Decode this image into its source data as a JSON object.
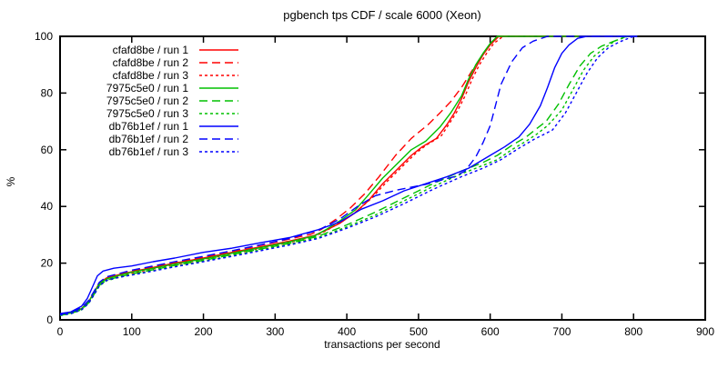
{
  "chart_data": {
    "type": "line",
    "title": "pgbench tps CDF / scale 6000 (Xeon)",
    "xlabel": "transactions per second",
    "ylabel": "%",
    "xlim": [
      0,
      900
    ],
    "ylim": [
      0,
      100
    ],
    "xticks": [
      0,
      100,
      200,
      300,
      400,
      500,
      600,
      700,
      800,
      900
    ],
    "yticks": [
      0,
      20,
      40,
      60,
      80,
      100
    ],
    "grid": false,
    "legend_position": "top-left-inside",
    "axis_color": "#000000",
    "series": [
      {
        "name": "cfafd8be / run 1",
        "color": "#ff0000",
        "dash": "solid",
        "points": [
          [
            0,
            2
          ],
          [
            15,
            2.5
          ],
          [
            30,
            4
          ],
          [
            40,
            6.5
          ],
          [
            48,
            10
          ],
          [
            55,
            13
          ],
          [
            65,
            14.8
          ],
          [
            80,
            15.8
          ],
          [
            100,
            17
          ],
          [
            130,
            18.5
          ],
          [
            160,
            20
          ],
          [
            200,
            21.8
          ],
          [
            240,
            23.8
          ],
          [
            280,
            25.8
          ],
          [
            320,
            27.8
          ],
          [
            355,
            29.8
          ],
          [
            370,
            31.5
          ],
          [
            390,
            34
          ],
          [
            410,
            37.5
          ],
          [
            430,
            42
          ],
          [
            450,
            48
          ],
          [
            470,
            53
          ],
          [
            490,
            58
          ],
          [
            505,
            61
          ],
          [
            515,
            62.5
          ],
          [
            525,
            64
          ],
          [
            540,
            69
          ],
          [
            550,
            73
          ],
          [
            560,
            78
          ],
          [
            570,
            84
          ],
          [
            580,
            89
          ],
          [
            590,
            93.5
          ],
          [
            600,
            97
          ],
          [
            612,
            100
          ],
          [
            805,
            100
          ]
        ]
      },
      {
        "name": "cfafd8be / run 2",
        "color": "#ff0000",
        "dash": "dashed",
        "points": [
          [
            0,
            2
          ],
          [
            15,
            2.6
          ],
          [
            30,
            4.2
          ],
          [
            40,
            6.8
          ],
          [
            48,
            10.2
          ],
          [
            55,
            13.2
          ],
          [
            65,
            15
          ],
          [
            80,
            16
          ],
          [
            100,
            17.3
          ],
          [
            130,
            18.8
          ],
          [
            160,
            20.3
          ],
          [
            200,
            22.2
          ],
          [
            240,
            24.2
          ],
          [
            280,
            26.3
          ],
          [
            320,
            28.5
          ],
          [
            350,
            30.2
          ],
          [
            365,
            32
          ],
          [
            385,
            35.5
          ],
          [
            405,
            39.5
          ],
          [
            425,
            44.5
          ],
          [
            445,
            50.5
          ],
          [
            468,
            58
          ],
          [
            490,
            64
          ],
          [
            514,
            69
          ],
          [
            530,
            73
          ],
          [
            545,
            77
          ],
          [
            560,
            82
          ],
          [
            575,
            88
          ],
          [
            585,
            92
          ],
          [
            595,
            95.5
          ],
          [
            605,
            98.5
          ],
          [
            615,
            100
          ],
          [
            805,
            100
          ]
        ]
      },
      {
        "name": "cfafd8be / run 3",
        "color": "#ff0000",
        "dash": "dotted",
        "points": [
          [
            0,
            1.8
          ],
          [
            15,
            2.3
          ],
          [
            30,
            3.8
          ],
          [
            40,
            6.2
          ],
          [
            48,
            9.5
          ],
          [
            55,
            12.5
          ],
          [
            65,
            14.3
          ],
          [
            80,
            15.3
          ],
          [
            100,
            16.5
          ],
          [
            130,
            18
          ],
          [
            160,
            19.5
          ],
          [
            200,
            21.3
          ],
          [
            240,
            23.3
          ],
          [
            280,
            25.3
          ],
          [
            320,
            27.3
          ],
          [
            355,
            29.4
          ],
          [
            375,
            32
          ],
          [
            395,
            35
          ],
          [
            415,
            38.5
          ],
          [
            435,
            43
          ],
          [
            455,
            48.5
          ],
          [
            475,
            53.5
          ],
          [
            495,
            58.5
          ],
          [
            510,
            61.5
          ],
          [
            520,
            63
          ],
          [
            532,
            65
          ],
          [
            545,
            70
          ],
          [
            555,
            74
          ],
          [
            565,
            79
          ],
          [
            575,
            85
          ],
          [
            585,
            90
          ],
          [
            595,
            94
          ],
          [
            605,
            97.5
          ],
          [
            618,
            100
          ],
          [
            805,
            100
          ]
        ]
      },
      {
        "name": "7975c5e0 / run 1",
        "color": "#00c000",
        "dash": "solid",
        "points": [
          [
            0,
            1.8
          ],
          [
            15,
            2.4
          ],
          [
            30,
            3.9
          ],
          [
            40,
            6.3
          ],
          [
            48,
            9.8
          ],
          [
            55,
            12.8
          ],
          [
            65,
            14.5
          ],
          [
            80,
            15.5
          ],
          [
            100,
            16.8
          ],
          [
            130,
            18.2
          ],
          [
            160,
            19.7
          ],
          [
            200,
            21.5
          ],
          [
            240,
            23.5
          ],
          [
            280,
            25.5
          ],
          [
            320,
            27.5
          ],
          [
            355,
            29.6
          ],
          [
            372,
            32
          ],
          [
            392,
            35.2
          ],
          [
            412,
            38.8
          ],
          [
            430,
            44
          ],
          [
            450,
            50
          ],
          [
            470,
            55
          ],
          [
            490,
            60
          ],
          [
            510,
            63
          ],
          [
            530,
            68
          ],
          [
            545,
            73
          ],
          [
            560,
            79
          ],
          [
            570,
            85
          ],
          [
            580,
            90
          ],
          [
            590,
            94
          ],
          [
            600,
            97.5
          ],
          [
            610,
            100
          ],
          [
            805,
            100
          ]
        ]
      },
      {
        "name": "7975c5e0 / run 2",
        "color": "#00c000",
        "dash": "dashed",
        "points": [
          [
            0,
            1.6
          ],
          [
            15,
            2.2
          ],
          [
            30,
            3.6
          ],
          [
            40,
            6
          ],
          [
            48,
            9.2
          ],
          [
            55,
            12.2
          ],
          [
            65,
            14
          ],
          [
            80,
            15
          ],
          [
            100,
            16.2
          ],
          [
            130,
            17.7
          ],
          [
            160,
            19.2
          ],
          [
            200,
            21
          ],
          [
            240,
            23
          ],
          [
            280,
            25
          ],
          [
            320,
            27
          ],
          [
            360,
            29.5
          ],
          [
            400,
            33.5
          ],
          [
            440,
            38
          ],
          [
            480,
            43
          ],
          [
            520,
            48
          ],
          [
            560,
            52.5
          ],
          [
            590,
            55.5
          ],
          [
            610,
            58
          ],
          [
            630,
            61.5
          ],
          [
            650,
            64.5
          ],
          [
            665,
            67.5
          ],
          [
            678,
            70
          ],
          [
            695,
            76
          ],
          [
            710,
            83
          ],
          [
            725,
            89.5
          ],
          [
            740,
            94
          ],
          [
            755,
            96.5
          ],
          [
            770,
            98
          ],
          [
            790,
            100
          ],
          [
            805,
            100
          ]
        ]
      },
      {
        "name": "7975c5e0 / run 3",
        "color": "#00c000",
        "dash": "dotted",
        "points": [
          [
            0,
            1.5
          ],
          [
            15,
            2.1
          ],
          [
            30,
            3.5
          ],
          [
            40,
            5.8
          ],
          [
            48,
            9
          ],
          [
            55,
            12
          ],
          [
            65,
            13.8
          ],
          [
            80,
            14.8
          ],
          [
            100,
            16
          ],
          [
            130,
            17.4
          ],
          [
            160,
            18.9
          ],
          [
            200,
            20.7
          ],
          [
            240,
            22.7
          ],
          [
            280,
            24.7
          ],
          [
            320,
            26.7
          ],
          [
            360,
            29
          ],
          [
            400,
            32.8
          ],
          [
            440,
            37
          ],
          [
            480,
            42
          ],
          [
            520,
            47
          ],
          [
            560,
            51.5
          ],
          [
            590,
            54.5
          ],
          [
            610,
            56.5
          ],
          [
            630,
            60
          ],
          [
            650,
            63
          ],
          [
            665,
            65.5
          ],
          [
            680,
            68.5
          ],
          [
            700,
            74
          ],
          [
            715,
            81
          ],
          [
            730,
            88
          ],
          [
            745,
            93
          ],
          [
            760,
            96
          ],
          [
            775,
            98.5
          ],
          [
            792,
            100
          ],
          [
            805,
            100
          ]
        ]
      },
      {
        "name": "db76b1ef / run 1",
        "color": "#0000ff",
        "dash": "solid",
        "points": [
          [
            0,
            2.2
          ],
          [
            15,
            2.8
          ],
          [
            30,
            4.8
          ],
          [
            38,
            7.5
          ],
          [
            45,
            11.5
          ],
          [
            52,
            15.5
          ],
          [
            60,
            17.2
          ],
          [
            75,
            18.2
          ],
          [
            100,
            19
          ],
          [
            130,
            20.5
          ],
          [
            160,
            21.8
          ],
          [
            200,
            23.8
          ],
          [
            240,
            25.3
          ],
          [
            280,
            27.2
          ],
          [
            320,
            29
          ],
          [
            360,
            31.8
          ],
          [
            390,
            34.5
          ],
          [
            420,
            39
          ],
          [
            450,
            42
          ],
          [
            480,
            45.5
          ],
          [
            510,
            48
          ],
          [
            540,
            50.5
          ],
          [
            570,
            53.5
          ],
          [
            600,
            58
          ],
          [
            620,
            61
          ],
          [
            640,
            64.5
          ],
          [
            655,
            69
          ],
          [
            670,
            75.5
          ],
          [
            680,
            82
          ],
          [
            690,
            89
          ],
          [
            700,
            94
          ],
          [
            710,
            97
          ],
          [
            722,
            99.3
          ],
          [
            735,
            100
          ],
          [
            805,
            100
          ]
        ]
      },
      {
        "name": "db76b1ef / run 2",
        "color": "#0000ff",
        "dash": "dashed",
        "points": [
          [
            0,
            2
          ],
          [
            15,
            2.6
          ],
          [
            30,
            4.3
          ],
          [
            40,
            6.9
          ],
          [
            48,
            10.3
          ],
          [
            55,
            13.3
          ],
          [
            65,
            15.2
          ],
          [
            80,
            16.2
          ],
          [
            100,
            17.5
          ],
          [
            130,
            19
          ],
          [
            160,
            20.5
          ],
          [
            200,
            22.4
          ],
          [
            240,
            24.4
          ],
          [
            280,
            26.5
          ],
          [
            320,
            28.7
          ],
          [
            360,
            31.6
          ],
          [
            390,
            35.5
          ],
          [
            415,
            40
          ],
          [
            440,
            43.8
          ],
          [
            470,
            45.8
          ],
          [
            510,
            47.8
          ],
          [
            550,
            50.5
          ],
          [
            565,
            52.5
          ],
          [
            580,
            57.5
          ],
          [
            590,
            62.5
          ],
          [
            600,
            68.5
          ],
          [
            615,
            83
          ],
          [
            630,
            91
          ],
          [
            645,
            96
          ],
          [
            660,
            98.3
          ],
          [
            680,
            100
          ],
          [
            805,
            100
          ]
        ]
      },
      {
        "name": "db76b1ef / run 3",
        "color": "#0000ff",
        "dash": "dotted",
        "points": [
          [
            0,
            1.7
          ],
          [
            15,
            2.2
          ],
          [
            30,
            3.6
          ],
          [
            40,
            5.9
          ],
          [
            48,
            9.1
          ],
          [
            55,
            12.1
          ],
          [
            65,
            13.9
          ],
          [
            80,
            14.9
          ],
          [
            100,
            15.8
          ],
          [
            130,
            17.2
          ],
          [
            160,
            18.7
          ],
          [
            200,
            20.5
          ],
          [
            240,
            22.4
          ],
          [
            280,
            24.4
          ],
          [
            320,
            26.4
          ],
          [
            360,
            28.7
          ],
          [
            400,
            32.3
          ],
          [
            440,
            36.3
          ],
          [
            480,
            41
          ],
          [
            520,
            46
          ],
          [
            560,
            50.5
          ],
          [
            590,
            53.5
          ],
          [
            615,
            56.5
          ],
          [
            640,
            60.5
          ],
          [
            660,
            63.5
          ],
          [
            687,
            67
          ],
          [
            705,
            73
          ],
          [
            720,
            80
          ],
          [
            735,
            87
          ],
          [
            750,
            92.5
          ],
          [
            765,
            96
          ],
          [
            780,
            98
          ],
          [
            800,
            100
          ],
          [
            805,
            100
          ]
        ]
      }
    ]
  }
}
